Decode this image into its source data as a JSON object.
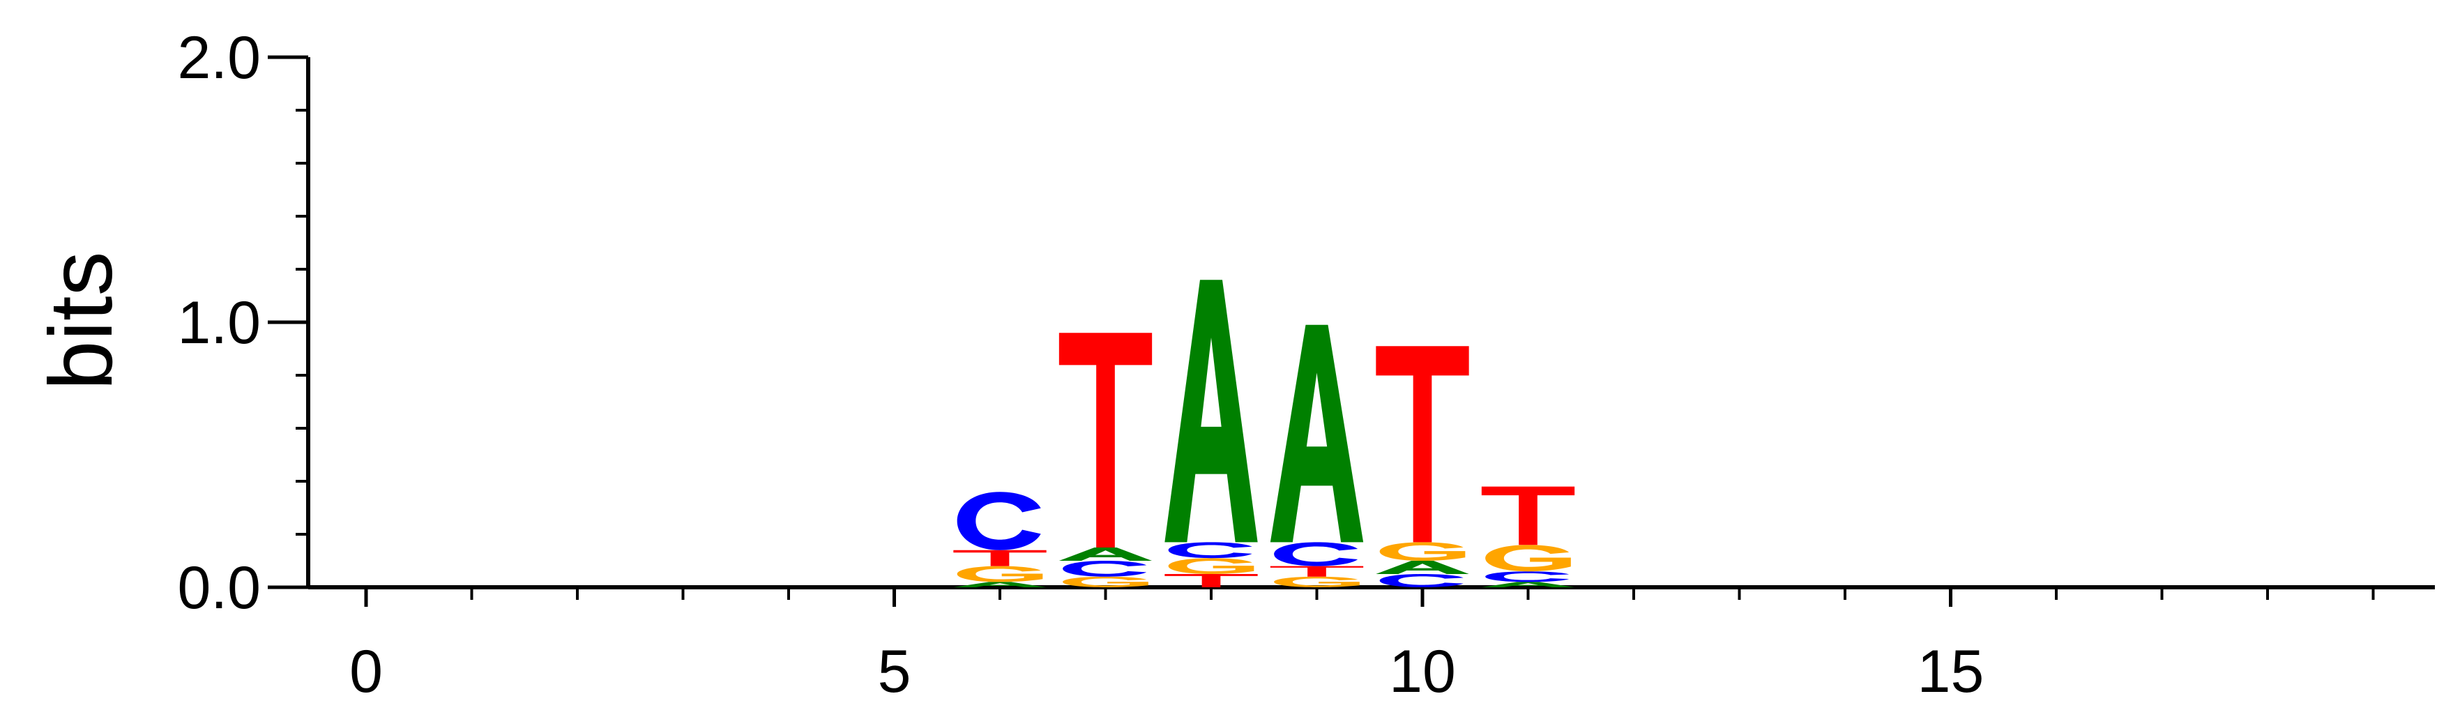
{
  "chart_data": {
    "type": "sequence-logo",
    "ylabel": "bits",
    "xlabel": "",
    "ylim": [
      0,
      2
    ],
    "xlim": [
      -0.5,
      19
    ],
    "y_major_ticks": [
      0,
      1,
      2
    ],
    "y_tick_labels": [
      "0.0",
      "1.0",
      "2.0"
    ],
    "y_minor_step": 0.2,
    "x_major_ticks": [
      0,
      5,
      10,
      15
    ],
    "x_tick_labels": [
      "0",
      "5",
      "10",
      "15"
    ],
    "x_minor_step": 1,
    "colors": {
      "A": "#008000",
      "C": "#0000ff",
      "G": "#ffa500",
      "T": "#ff0000"
    },
    "positions": [
      {
        "pos": 6,
        "stack": [
          {
            "base": "A",
            "h": 0.02
          },
          {
            "base": "G",
            "h": 0.06
          },
          {
            "base": "T",
            "h": 0.06
          },
          {
            "base": "C",
            "h": 0.22
          }
        ]
      },
      {
        "pos": 7,
        "stack": [
          {
            "base": "G",
            "h": 0.04
          },
          {
            "base": "C",
            "h": 0.06
          },
          {
            "base": "A",
            "h": 0.05
          },
          {
            "base": "T",
            "h": 0.81
          }
        ]
      },
      {
        "pos": 8,
        "stack": [
          {
            "base": "T",
            "h": 0.05
          },
          {
            "base": "G",
            "h": 0.06
          },
          {
            "base": "C",
            "h": 0.06
          },
          {
            "base": "A",
            "h": 0.99
          }
        ]
      },
      {
        "pos": 9,
        "stack": [
          {
            "base": "G",
            "h": 0.04
          },
          {
            "base": "T",
            "h": 0.04
          },
          {
            "base": "C",
            "h": 0.09
          },
          {
            "base": "A",
            "h": 0.82
          }
        ]
      },
      {
        "pos": 10,
        "stack": [
          {
            "base": "C",
            "h": 0.05
          },
          {
            "base": "A",
            "h": 0.05
          },
          {
            "base": "G",
            "h": 0.07
          },
          {
            "base": "T",
            "h": 0.74
          }
        ]
      },
      {
        "pos": 11,
        "stack": [
          {
            "base": "A",
            "h": 0.02
          },
          {
            "base": "C",
            "h": 0.04
          },
          {
            "base": "G",
            "h": 0.1
          },
          {
            "base": "T",
            "h": 0.22
          }
        ]
      }
    ]
  }
}
